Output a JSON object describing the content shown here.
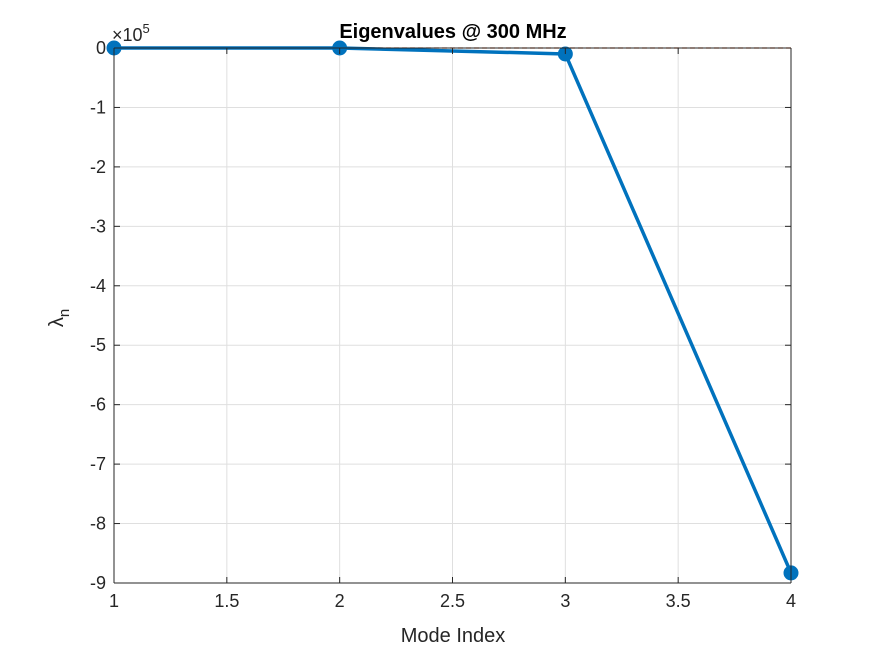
{
  "chart_data": {
    "type": "line",
    "title": "Eigenvalues @ 300 MHz",
    "xlabel": "Mode Index",
    "ylabel_symbol": "λ",
    "ylabel_subscript": "n",
    "exponent_multiplier": "×10",
    "exponent_power": "5",
    "xlim": [
      1,
      4
    ],
    "ylim": [
      -9,
      0
    ],
    "xticks": [
      1,
      1.5,
      2,
      2.5,
      3,
      3.5,
      4
    ],
    "yticks": [
      0,
      -1,
      -2,
      -3,
      -4,
      -5,
      -6,
      -7,
      -8,
      -9
    ],
    "xtick_labels": [
      "1",
      "1.5",
      "2",
      "2.5",
      "3",
      "3.5",
      "4"
    ],
    "ytick_labels": [
      "0",
      "-1",
      "-2",
      "-3",
      "-4",
      "-5",
      "-6",
      "-7",
      "-8",
      "-9"
    ],
    "grid": true,
    "box": true,
    "series": [
      {
        "x": [
          1,
          2,
          3,
          4
        ],
        "values": [
          0.0,
          0.0,
          -0.1,
          -8.83
        ],
        "color": "#0072BD",
        "marker": "circle"
      }
    ],
    "reference_line": {
      "y": 0,
      "color": "#D95319",
      "style": "dashed"
    }
  }
}
